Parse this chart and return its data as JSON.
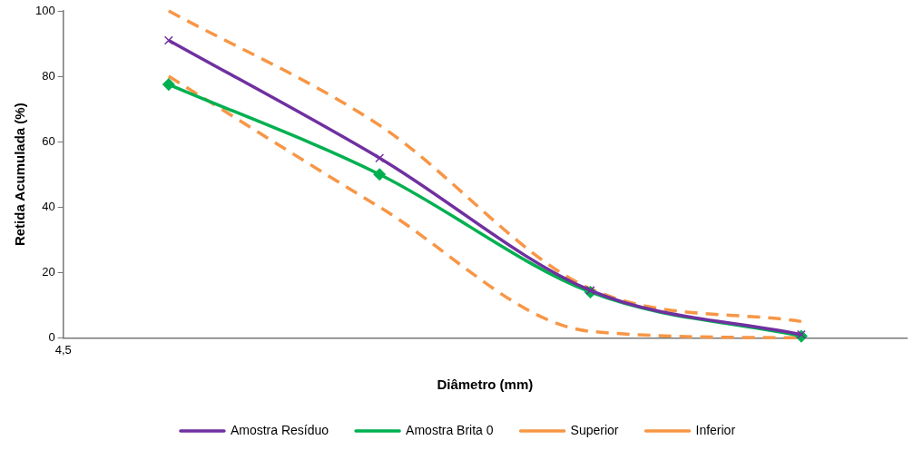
{
  "chart_data": {
    "type": "line",
    "xlabel": "Diâmetro (mm)",
    "ylabel": "Retida Acumulada (%)",
    "categories": [
      null,
      null,
      null,
      null
    ],
    "ylim": [
      0,
      100
    ],
    "yticks": [
      0,
      20,
      40,
      60,
      80,
      100
    ],
    "grid": false,
    "legend": "bottom",
    "annotations": [
      "4,5"
    ],
    "series": [
      {
        "name": "Inferior",
        "color": "#f79646",
        "line_style": "dashed",
        "marker": "none",
        "values": [
          80,
          40,
          2,
          0
        ]
      },
      {
        "name": "Superior",
        "color": "#f79646",
        "line_style": "dashed",
        "marker": "none",
        "values": [
          100,
          65,
          15,
          5
        ]
      },
      {
        "name": "Amostra Brita 0",
        "color": "#00b050",
        "line_style": "solid",
        "marker": "diamond",
        "values": [
          77.5,
          50,
          14,
          0.5
        ]
      },
      {
        "name": "Amostra Resíduo",
        "color": "#7030a0",
        "line_style": "solid",
        "marker": "cross",
        "values": [
          91,
          55,
          14.5,
          1
        ]
      }
    ]
  }
}
